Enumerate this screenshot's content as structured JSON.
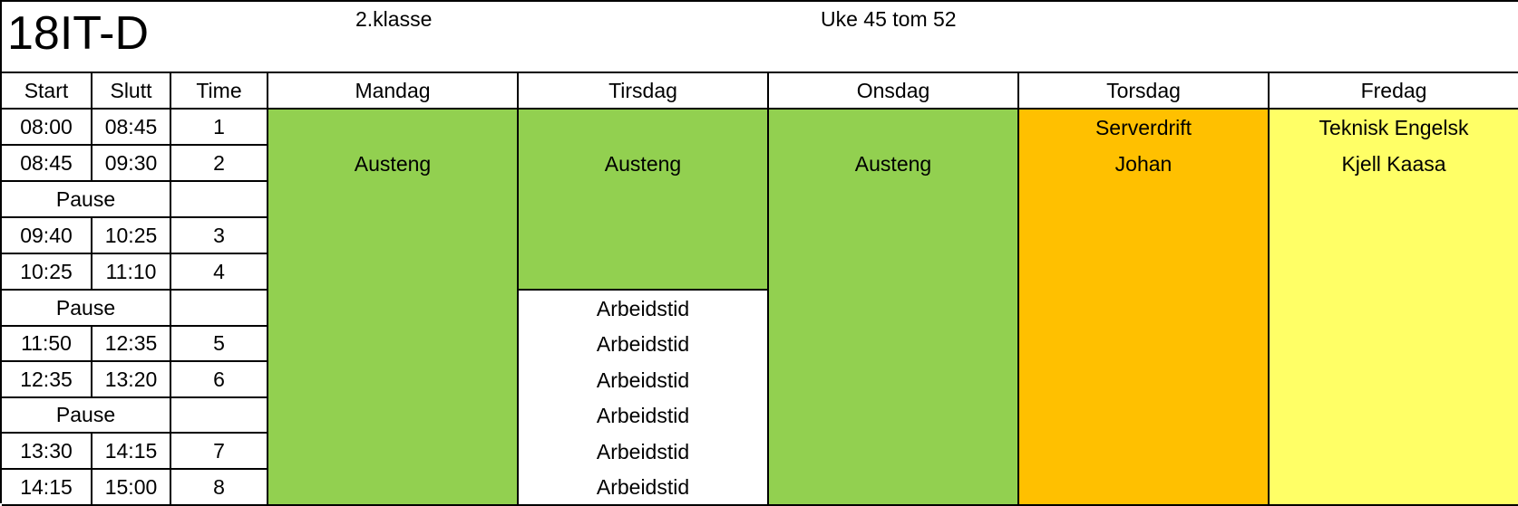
{
  "header": {
    "class_code": "18IT-D",
    "grade": "2.klasse",
    "weeks": "Uke 45 tom 52"
  },
  "columns": {
    "start": "Start",
    "slutt": "Slutt",
    "time": "Time",
    "days": [
      "Mandag",
      "Tirsdag",
      "Onsdag",
      "Torsdag",
      "Fredag"
    ]
  },
  "periods": [
    {
      "start": "08:00",
      "slutt": "08:45",
      "time": "1"
    },
    {
      "start": "08:45",
      "slutt": "09:30",
      "time": "2"
    },
    {
      "pause": "Pause"
    },
    {
      "start": "09:40",
      "slutt": "10:25",
      "time": "3"
    },
    {
      "start": "10:25",
      "slutt": "11:10",
      "time": "4"
    },
    {
      "pause": "Pause"
    },
    {
      "start": "11:50",
      "slutt": "12:35",
      "time": "5"
    },
    {
      "start": "12:35",
      "slutt": "13:20",
      "time": "6"
    },
    {
      "pause": "Pause"
    },
    {
      "start": "13:30",
      "slutt": "14:15",
      "time": "7"
    },
    {
      "start": "14:15",
      "slutt": "15:00",
      "time": "8"
    }
  ],
  "schedule": {
    "mandag": {
      "line2": "Austeng",
      "color": "#92d050"
    },
    "tirsdag": {
      "line2": "Austeng",
      "color": "#92d050",
      "after": [
        "Arbeidstid",
        "Arbeidstid",
        "Arbeidstid",
        "Arbeidstid",
        "Arbeidstid",
        "Arbeidstid"
      ]
    },
    "onsdag": {
      "line2": "Austeng",
      "color": "#92d050"
    },
    "torsdag": {
      "line1": "Serverdrift",
      "line2": "Johan",
      "color": "#ffc000"
    },
    "fredag": {
      "line1": "Teknisk Engelsk",
      "line2": "Kjell Kaasa",
      "color": "#ffff66"
    }
  }
}
